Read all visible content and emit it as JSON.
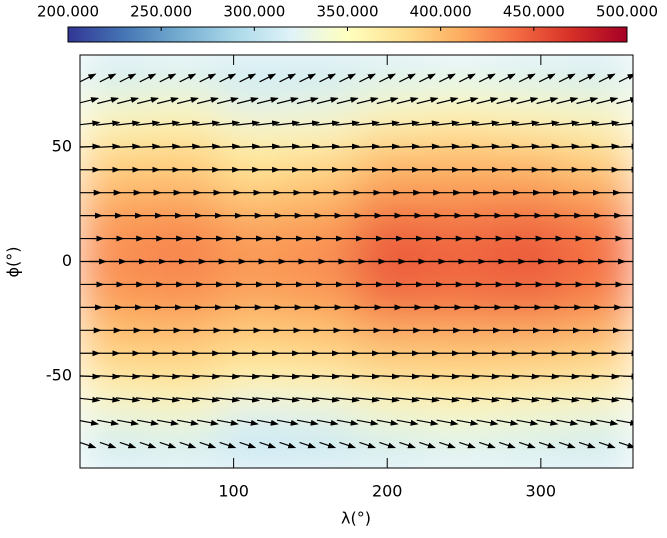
{
  "chart_data": {
    "type": "heatmap-quiver",
    "x_label": "λ(°)",
    "y_label": "ϕ(°)",
    "xlim": [
      0,
      360
    ],
    "ylim": [
      -90,
      90
    ],
    "xticks": [
      100,
      200,
      300
    ],
    "yticks": [
      -50,
      0,
      50
    ],
    "clim": [
      200,
      500
    ],
    "cticks": [
      {
        "value": 200,
        "label": "200.000"
      },
      {
        "value": 250,
        "label": "250.000"
      },
      {
        "value": 300,
        "label": "300.000"
      },
      {
        "value": 350,
        "label": "350.000"
      },
      {
        "value": 400,
        "label": "400.000"
      },
      {
        "value": 450,
        "label": "450.000"
      },
      {
        "value": 500,
        "label": "500.000"
      }
    ],
    "colorscale": [
      "#313695",
      "#4575b4",
      "#74add1",
      "#abd9e9",
      "#e0f3f8",
      "#ffffbf",
      "#fee090",
      "#fdae61",
      "#f46d43",
      "#d73027",
      "#a50026"
    ],
    "lon": [
      22.5,
      67.5,
      112.5,
      157.5,
      202.5,
      247.5,
      292.5,
      337.5
    ],
    "lat": [
      82.5,
      67.5,
      52.5,
      37.5,
      22.5,
      7.5,
      -7.5,
      -22.5,
      -37.5,
      -52.5,
      -67.5,
      -82.5
    ],
    "values": [
      [
        305,
        310,
        305,
        305,
        310,
        315,
        310,
        305
      ],
      [
        340,
        345,
        325,
        330,
        345,
        350,
        345,
        340
      ],
      [
        375,
        380,
        365,
        365,
        385,
        390,
        385,
        375
      ],
      [
        395,
        395,
        380,
        390,
        410,
        410,
        410,
        400
      ],
      [
        415,
        418,
        405,
        410,
        430,
        430,
        432,
        425
      ],
      [
        425,
        430,
        420,
        425,
        450,
        445,
        450,
        440
      ],
      [
        425,
        428,
        420,
        425,
        448,
        445,
        448,
        438
      ],
      [
        412,
        415,
        405,
        410,
        428,
        428,
        430,
        422
      ],
      [
        392,
        392,
        385,
        390,
        400,
        400,
        400,
        395
      ],
      [
        370,
        375,
        360,
        362,
        375,
        380,
        375,
        370
      ],
      [
        335,
        340,
        320,
        325,
        340,
        345,
        340,
        335
      ],
      [
        305,
        308,
        302,
        302,
        306,
        312,
        308,
        304
      ]
    ],
    "quiver": {
      "lat": [
        80,
        70,
        60,
        50,
        40,
        30,
        20,
        10,
        0,
        -10,
        -20,
        -30,
        -40,
        -50,
        -60,
        -70,
        -80
      ],
      "lon": [
        5,
        18,
        31,
        44,
        57,
        70,
        83,
        96,
        109,
        122,
        135,
        148,
        161,
        174,
        187,
        200,
        213,
        226,
        239,
        252,
        265,
        278,
        291,
        304,
        317,
        330,
        343,
        356
      ],
      "u": [
        0.6,
        0.8,
        0.9,
        0.9,
        0.9,
        1.0,
        1.1,
        1.2,
        1.4,
        1.2,
        1.1,
        1.0,
        0.9,
        0.9,
        0.9,
        0.8,
        0.6
      ],
      "v": [
        0.3,
        0.2,
        0.1,
        0.05,
        0,
        0,
        0,
        0,
        0,
        0,
        0,
        0,
        0,
        -0.05,
        -0.1,
        -0.15,
        -0.2
      ]
    }
  }
}
